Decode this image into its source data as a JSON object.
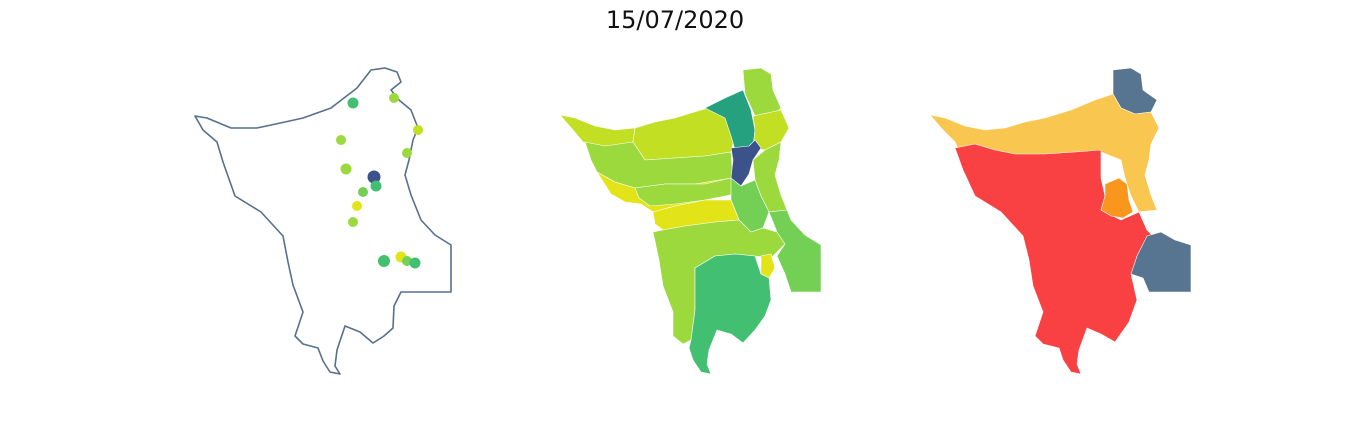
{
  "title": "15/07/2020",
  "colors": {
    "outline": "#56708d",
    "viridis_dark": "#3b528b",
    "viridis_teal": "#26a17f",
    "viridis_green": "#43bf71",
    "viridis_lightgreen": "#74d055",
    "viridis_lime": "#9bd93c",
    "viridis_yellowgreen": "#c2df23",
    "viridis_yellow": "#e2e418",
    "risk_red": "#f94144",
    "risk_orange": "#f8961e",
    "risk_yellow": "#f9c74f",
    "risk_slate": "#577590"
  },
  "panels": [
    {
      "name": "station-points-map",
      "type": "points"
    },
    {
      "name": "subbasin-value-choropleth",
      "type": "choropleth",
      "palette": "viridis"
    },
    {
      "name": "subbasin-risk-choropleth",
      "type": "choropleth",
      "palette": "risk"
    }
  ]
}
